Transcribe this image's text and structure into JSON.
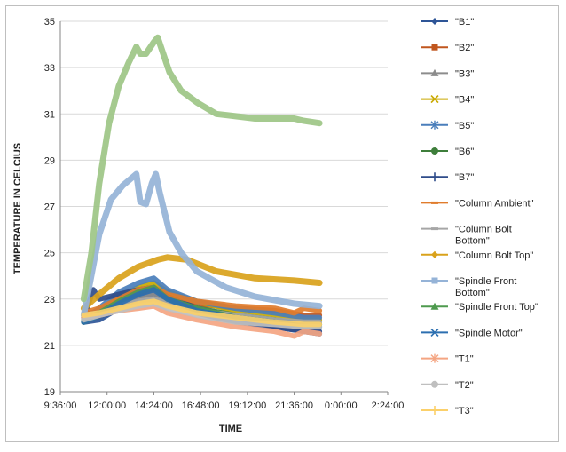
{
  "chart_data": {
    "type": "line",
    "title": "",
    "xlabel": "TIME",
    "ylabel": "TEMPERATURE IN CELCIUS",
    "xlim": [
      "9:36:00",
      "2:24:00"
    ],
    "ylim": [
      19,
      35
    ],
    "x_ticks": [
      "9:36:00",
      "12:00:00",
      "14:24:00",
      "16:48:00",
      "19:12:00",
      "21:36:00",
      "0:00:00",
      "2:24:00"
    ],
    "y_ticks": [
      19,
      21,
      23,
      25,
      27,
      29,
      31,
      33,
      35
    ],
    "grid": "horizontal",
    "legend": "right",
    "x_unit": "hours since 9:36:00",
    "series": [
      {
        "name": "\"B1\"",
        "color": "#2E5597",
        "marker": "diamond",
        "points": [
          [
            1.2,
            22.0
          ],
          [
            2.0,
            22.1
          ],
          [
            3.0,
            22.6
          ],
          [
            4.0,
            23.1
          ],
          [
            4.8,
            23.2
          ],
          [
            5.5,
            22.8
          ],
          [
            7.0,
            22.4
          ],
          [
            9.0,
            22.0
          ],
          [
            11.0,
            21.8
          ],
          [
            12.5,
            21.6
          ],
          [
            13.3,
            21.5
          ]
        ]
      },
      {
        "name": "\"B2\"",
        "color": "#C0561E",
        "marker": "square",
        "points": [
          [
            1.2,
            22.3
          ],
          [
            2.0,
            22.5
          ],
          [
            3.0,
            23.0
          ],
          [
            4.0,
            23.3
          ],
          [
            4.8,
            23.4
          ],
          [
            5.5,
            23.1
          ],
          [
            7.0,
            22.8
          ],
          [
            9.0,
            22.6
          ],
          [
            11.0,
            22.5
          ],
          [
            12.5,
            22.3
          ],
          [
            13.3,
            22.3
          ]
        ]
      },
      {
        "name": "\"B3\"",
        "color": "#8C8C8C",
        "marker": "triangle",
        "points": [
          [
            1.2,
            22.1
          ],
          [
            2.0,
            22.3
          ],
          [
            3.0,
            22.7
          ],
          [
            4.0,
            23.0
          ],
          [
            4.8,
            23.2
          ],
          [
            5.5,
            22.9
          ],
          [
            7.0,
            22.5
          ],
          [
            9.0,
            22.2
          ],
          [
            11.0,
            22.0
          ],
          [
            12.5,
            21.9
          ],
          [
            13.3,
            21.9
          ]
        ]
      },
      {
        "name": "\"B4\"",
        "color": "#C9A900",
        "marker": "x",
        "points": [
          [
            1.2,
            22.2
          ],
          [
            2.0,
            22.5
          ],
          [
            3.0,
            23.1
          ],
          [
            4.0,
            23.5
          ],
          [
            4.8,
            23.7
          ],
          [
            5.5,
            23.3
          ],
          [
            7.0,
            22.9
          ],
          [
            9.0,
            22.5
          ],
          [
            11.0,
            22.3
          ],
          [
            12.5,
            22.1
          ],
          [
            13.3,
            22.1
          ]
        ]
      },
      {
        "name": "\"B5\"",
        "color": "#4A7EBB",
        "marker": "star",
        "points": [
          [
            1.2,
            22.1
          ],
          [
            2.0,
            22.6
          ],
          [
            3.0,
            23.3
          ],
          [
            4.0,
            23.7
          ],
          [
            4.8,
            23.9
          ],
          [
            5.5,
            23.4
          ],
          [
            7.0,
            22.9
          ],
          [
            9.0,
            22.6
          ],
          [
            11.0,
            22.4
          ],
          [
            12.5,
            22.2
          ],
          [
            13.3,
            22.2
          ]
        ]
      },
      {
        "name": "\"B6\"",
        "color": "#3E7E3B",
        "marker": "circle",
        "points": [
          [
            1.2,
            22.0
          ],
          [
            2.0,
            22.3
          ],
          [
            3.0,
            22.9
          ],
          [
            4.0,
            23.3
          ],
          [
            4.8,
            23.5
          ],
          [
            5.5,
            23.1
          ],
          [
            7.0,
            22.6
          ],
          [
            9.0,
            22.3
          ],
          [
            11.0,
            22.1
          ],
          [
            12.5,
            21.9
          ],
          [
            13.3,
            21.9
          ]
        ]
      },
      {
        "name": "\"B7\"",
        "color": "#2F4C8A",
        "marker": "plus",
        "points": [
          [
            1.2,
            22.2
          ],
          [
            1.7,
            23.4
          ],
          [
            2.0,
            23.0
          ],
          [
            3.0,
            23.2
          ],
          [
            4.0,
            23.4
          ],
          [
            4.8,
            23.5
          ],
          [
            5.5,
            23.1
          ],
          [
            7.0,
            22.6
          ],
          [
            9.0,
            22.2
          ],
          [
            11.0,
            21.8
          ],
          [
            12.5,
            21.6
          ],
          [
            13.3,
            21.6
          ]
        ]
      },
      {
        "name": "\"Column Ambient\"",
        "color": "#E07C2C",
        "marker": "dash",
        "points": [
          [
            1.2,
            22.4
          ],
          [
            2.0,
            22.6
          ],
          [
            3.0,
            23.0
          ],
          [
            4.0,
            23.4
          ],
          [
            4.8,
            23.5
          ],
          [
            5.5,
            23.2
          ],
          [
            7.0,
            22.9
          ],
          [
            9.0,
            22.7
          ],
          [
            11.0,
            22.6
          ],
          [
            12.0,
            22.4
          ],
          [
            12.5,
            22.6
          ],
          [
            13.3,
            22.5
          ]
        ]
      },
      {
        "name": "\"Column Bolt Bottom\"",
        "color": "#A6A6A6",
        "marker": "dash",
        "points": [
          [
            1.2,
            22.3
          ],
          [
            2.0,
            22.4
          ],
          [
            3.0,
            22.7
          ],
          [
            4.0,
            22.9
          ],
          [
            4.8,
            23.0
          ],
          [
            5.5,
            22.8
          ],
          [
            7.0,
            22.5
          ],
          [
            9.0,
            22.3
          ],
          [
            11.0,
            22.1
          ],
          [
            12.5,
            22.0
          ],
          [
            13.3,
            22.0
          ]
        ]
      },
      {
        "name": "\"Column Bolt Top\"",
        "color": "#D9A21B",
        "marker": "diamond",
        "points": [
          [
            1.2,
            22.6
          ],
          [
            2.0,
            23.2
          ],
          [
            3.0,
            23.9
          ],
          [
            4.0,
            24.4
          ],
          [
            5.0,
            24.7
          ],
          [
            5.5,
            24.8
          ],
          [
            6.5,
            24.7
          ],
          [
            8.0,
            24.2
          ],
          [
            10.0,
            23.9
          ],
          [
            12.0,
            23.8
          ],
          [
            13.3,
            23.7
          ]
        ]
      },
      {
        "name": "\"Spindle Front Bottom\"",
        "color": "#95B3D7",
        "marker": "square",
        "points": [
          [
            1.2,
            22.3
          ],
          [
            2.0,
            25.8
          ],
          [
            2.6,
            27.3
          ],
          [
            3.2,
            27.9
          ],
          [
            3.9,
            28.4
          ],
          [
            4.1,
            27.2
          ],
          [
            4.4,
            27.1
          ],
          [
            4.7,
            28.0
          ],
          [
            4.9,
            28.4
          ],
          [
            5.1,
            27.6
          ],
          [
            5.6,
            25.9
          ],
          [
            6.2,
            25.0
          ],
          [
            7.0,
            24.2
          ],
          [
            8.5,
            23.5
          ],
          [
            10.0,
            23.1
          ],
          [
            12.0,
            22.8
          ],
          [
            13.3,
            22.7
          ]
        ]
      },
      {
        "name": "\"Spindle Front Top\"",
        "color": "#4E9A4E",
        "marker": "triangle",
        "points": [
          [
            1.2,
            22.1
          ],
          [
            2.0,
            22.4
          ],
          [
            3.0,
            22.9
          ],
          [
            4.0,
            23.3
          ],
          [
            4.8,
            23.5
          ],
          [
            5.5,
            23.0
          ],
          [
            7.0,
            22.6
          ],
          [
            9.0,
            22.2
          ],
          [
            11.0,
            22.0
          ],
          [
            12.5,
            21.8
          ],
          [
            13.3,
            21.8
          ]
        ]
      },
      {
        "name": "\"Spindle Motor\"",
        "color": "#2C6FB0",
        "marker": "x",
        "points": [
          [
            1.2,
            22.0
          ],
          [
            2.0,
            22.3
          ],
          [
            3.0,
            22.8
          ],
          [
            4.0,
            23.2
          ],
          [
            4.8,
            23.4
          ],
          [
            5.5,
            23.0
          ],
          [
            7.0,
            22.5
          ],
          [
            9.0,
            22.2
          ],
          [
            11.0,
            22.0
          ],
          [
            12.5,
            21.8
          ],
          [
            13.3,
            21.8
          ]
        ]
      },
      {
        "name": "\"T1\"",
        "color": "#F4A582",
        "marker": "star",
        "points": [
          [
            1.2,
            22.2
          ],
          [
            2.0,
            22.3
          ],
          [
            3.0,
            22.5
          ],
          [
            4.0,
            22.6
          ],
          [
            4.8,
            22.7
          ],
          [
            5.5,
            22.4
          ],
          [
            7.0,
            22.1
          ],
          [
            9.0,
            21.8
          ],
          [
            11.0,
            21.6
          ],
          [
            12.0,
            21.4
          ],
          [
            12.5,
            21.6
          ],
          [
            13.3,
            21.5
          ]
        ]
      },
      {
        "name": "\"T2\"",
        "color": "#BFBFBF",
        "marker": "circle",
        "points": [
          [
            1.2,
            22.1
          ],
          [
            2.0,
            22.3
          ],
          [
            3.0,
            22.5
          ],
          [
            4.0,
            22.7
          ],
          [
            4.8,
            22.8
          ],
          [
            5.5,
            22.6
          ],
          [
            7.0,
            22.3
          ],
          [
            9.0,
            22.0
          ],
          [
            11.0,
            21.9
          ],
          [
            12.5,
            21.8
          ],
          [
            13.3,
            21.8
          ]
        ]
      },
      {
        "name": "\"T3\"",
        "color": "#FBD06A",
        "marker": "plus",
        "points": [
          [
            1.2,
            22.3
          ],
          [
            2.0,
            22.4
          ],
          [
            3.0,
            22.6
          ],
          [
            4.0,
            22.8
          ],
          [
            4.8,
            22.9
          ],
          [
            5.5,
            22.7
          ],
          [
            7.0,
            22.4
          ],
          [
            9.0,
            22.2
          ],
          [
            11.0,
            22.0
          ],
          [
            12.5,
            21.9
          ],
          [
            13.3,
            21.9
          ]
        ]
      },
      {
        "name": "",
        "color": "#9DC586",
        "marker": "none",
        "points": [
          [
            1.2,
            23.0
          ],
          [
            1.6,
            25.0
          ],
          [
            2.0,
            28.0
          ],
          [
            2.5,
            30.6
          ],
          [
            3.0,
            32.2
          ],
          [
            3.5,
            33.2
          ],
          [
            3.9,
            33.9
          ],
          [
            4.1,
            33.6
          ],
          [
            4.4,
            33.6
          ],
          [
            4.8,
            34.1
          ],
          [
            5.0,
            34.3
          ],
          [
            5.2,
            33.8
          ],
          [
            5.6,
            32.8
          ],
          [
            6.2,
            32.0
          ],
          [
            7.0,
            31.5
          ],
          [
            8.0,
            31.0
          ],
          [
            9.0,
            30.9
          ],
          [
            10.0,
            30.8
          ],
          [
            11.0,
            30.8
          ],
          [
            12.0,
            30.8
          ],
          [
            12.5,
            30.7
          ],
          [
            13.3,
            30.6
          ]
        ]
      }
    ]
  }
}
